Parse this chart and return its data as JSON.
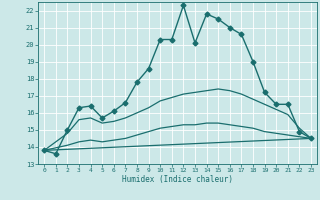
{
  "xlabel": "Humidex (Indice chaleur)",
  "background_color": "#cce8e8",
  "grid_color": "#ffffff",
  "line_color": "#1a6e6e",
  "xlim": [
    -0.5,
    23.5
  ],
  "ylim": [
    13,
    22.5
  ],
  "yticks": [
    13,
    14,
    15,
    16,
    17,
    18,
    19,
    20,
    21,
    22
  ],
  "xticks": [
    0,
    1,
    2,
    3,
    4,
    5,
    6,
    7,
    8,
    9,
    10,
    11,
    12,
    13,
    14,
    15,
    16,
    17,
    18,
    19,
    20,
    21,
    22,
    23
  ],
  "series": [
    {
      "x": [
        0,
        1,
        2,
        3,
        4,
        5,
        6,
        7,
        8,
        9,
        10,
        11,
        12,
        13,
        14,
        15,
        16,
        17,
        18,
        19,
        20,
        21,
        22,
        23
      ],
      "y": [
        13.8,
        13.6,
        15.0,
        16.3,
        16.4,
        15.7,
        16.1,
        16.6,
        17.8,
        18.6,
        20.3,
        20.3,
        22.3,
        20.1,
        21.8,
        21.5,
        21.0,
        20.6,
        19.0,
        17.2,
        16.5,
        16.5,
        14.9,
        14.5
      ],
      "marker": "D",
      "markersize": 2.5,
      "linewidth": 1.0
    },
    {
      "x": [
        0,
        2,
        3,
        4,
        5,
        6,
        7,
        8,
        9,
        10,
        11,
        12,
        13,
        14,
        15,
        16,
        17,
        18,
        19,
        20,
        21,
        22,
        23
      ],
      "y": [
        13.8,
        14.8,
        15.6,
        15.7,
        15.4,
        15.5,
        15.7,
        16.0,
        16.3,
        16.7,
        16.9,
        17.1,
        17.2,
        17.3,
        17.4,
        17.3,
        17.1,
        16.8,
        16.5,
        16.2,
        15.9,
        15.1,
        14.5
      ],
      "marker": null,
      "linewidth": 0.9
    },
    {
      "x": [
        0,
        2,
        3,
        4,
        5,
        6,
        7,
        8,
        9,
        10,
        11,
        12,
        13,
        14,
        15,
        16,
        17,
        18,
        19,
        20,
        21,
        22,
        23
      ],
      "y": [
        13.8,
        14.1,
        14.3,
        14.4,
        14.3,
        14.4,
        14.5,
        14.7,
        14.9,
        15.1,
        15.2,
        15.3,
        15.3,
        15.4,
        15.4,
        15.3,
        15.2,
        15.1,
        14.9,
        14.8,
        14.7,
        14.6,
        14.5
      ],
      "marker": null,
      "linewidth": 0.9
    },
    {
      "x": [
        0,
        23
      ],
      "y": [
        13.8,
        14.5
      ],
      "marker": null,
      "linewidth": 0.9
    }
  ]
}
